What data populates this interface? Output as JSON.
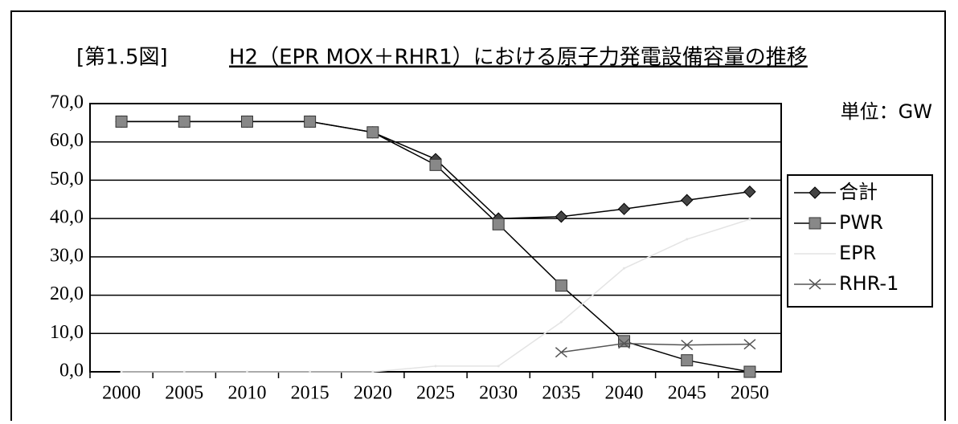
{
  "chart_data": {
    "type": "line",
    "title": "[第1.5図]",
    "subtitle": "H2（EPR MOX＋RHR1）における原子力発電設備容量の推移",
    "unit_label": "単位：GW",
    "categories": [
      "2000",
      "2005",
      "2010",
      "2015",
      "2020",
      "2025",
      "2030",
      "2035",
      "2040",
      "2045",
      "2050"
    ],
    "series": [
      {
        "name": "合計",
        "color": "#000000",
        "marker": "diamond",
        "values": [
          65.3,
          65.3,
          65.3,
          65.3,
          62.5,
          55.5,
          40,
          40.5,
          42.5,
          44.8,
          47
        ]
      },
      {
        "name": "PWR",
        "color": "#000000",
        "marker": "square",
        "values": [
          65.3,
          65.3,
          65.3,
          65.3,
          62.5,
          54,
          38.5,
          22.5,
          8,
          3,
          0
        ]
      },
      {
        "name": "EPR",
        "color": "#e4e4e4",
        "marker": "none",
        "values": [
          0,
          0,
          0,
          0,
          0,
          1.5,
          1.5,
          13,
          27,
          34.6,
          39.8
        ]
      },
      {
        "name": "RHR-1",
        "color": "#555555",
        "marker": "x",
        "values": [
          null,
          null,
          null,
          null,
          null,
          null,
          null,
          5.1,
          7.4,
          7,
          7.2
        ]
      }
    ],
    "ylim": [
      0,
      70
    ],
    "yticks": [
      {
        "value": 0,
        "label": "0,0"
      },
      {
        "value": 10,
        "label": "10,0"
      },
      {
        "value": 20,
        "label": "20,0"
      },
      {
        "value": 30,
        "label": "30,0"
      },
      {
        "value": 40,
        "label": "40,0"
      },
      {
        "value": 50,
        "label": "50,0"
      },
      {
        "value": 60,
        "label": "60,0"
      },
      {
        "value": 70,
        "label": "70,0"
      }
    ],
    "grid": true,
    "legend": "right"
  }
}
